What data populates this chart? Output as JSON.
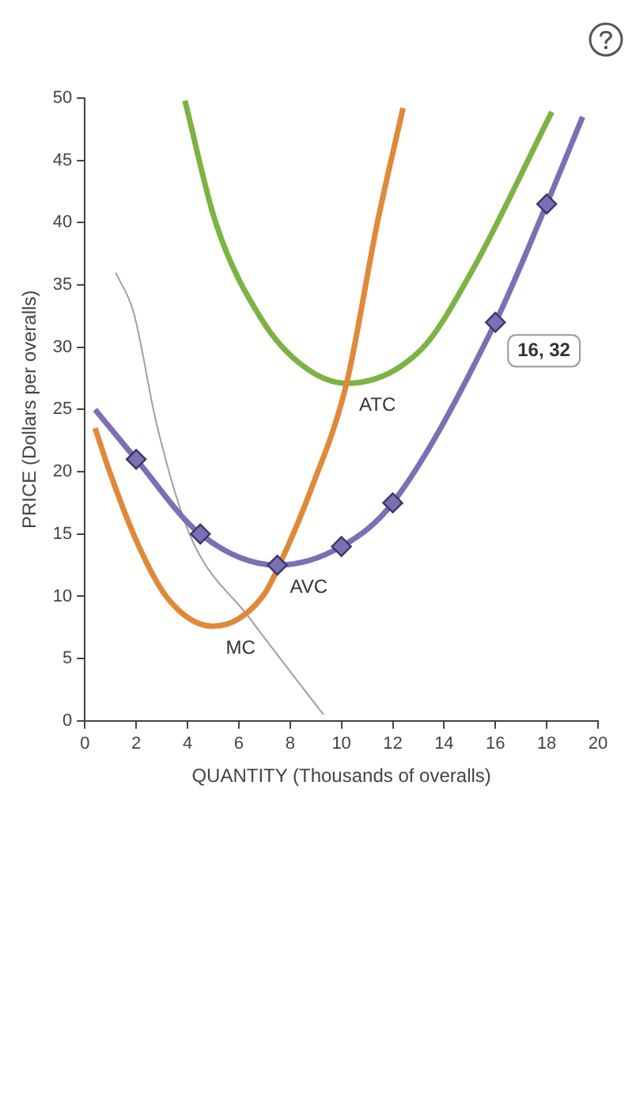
{
  "chart_data": {
    "type": "line",
    "xlabel": "QUANTITY (Thousands of overalls)",
    "ylabel": "PRICE (Dollars per overalls)",
    "xlim": [
      0,
      20
    ],
    "xticks": [
      0,
      2,
      4,
      6,
      8,
      10,
      12,
      14,
      16,
      18,
      20
    ],
    "ylim": [
      0,
      50
    ],
    "yticks": [
      0,
      5,
      10,
      15,
      20,
      25,
      30,
      35,
      40,
      45,
      50
    ],
    "grid": false,
    "legend": false,
    "series": [
      {
        "name": "MC",
        "color": "#e0893a",
        "marker": "none",
        "x": [
          0.4,
          1,
          2,
          3,
          4,
          5,
          6,
          7,
          7.6,
          8.8,
          10.2,
          11.4,
          12.4
        ],
        "values": [
          23.5,
          19.8,
          14.5,
          10.5,
          8.3,
          7.6,
          8.2,
          10.2,
          12.6,
          18.5,
          27.1,
          40,
          49.2
        ]
      },
      {
        "name": "AVC",
        "color": "#7b6fb5",
        "marker": "none",
        "x": [
          0.4,
          2,
          4.5,
          7.5,
          10,
          12,
          16,
          18,
          19.4
        ],
        "values": [
          25,
          21,
          15,
          12.5,
          14,
          17.5,
          32,
          41.5,
          48.5
        ]
      },
      {
        "color": "#7b6fb5",
        "type": "scatter",
        "marker": "diamond",
        "x": [
          2,
          4.5,
          7.5,
          10,
          12,
          16,
          18
        ],
        "values": [
          21,
          15,
          12.5,
          14,
          17.5,
          32,
          41.5
        ]
      },
      {
        "name": "ATC",
        "color": "#7cb342",
        "marker": "none",
        "x": [
          3.9,
          5.1,
          6.9,
          8.5,
          10.2,
          13.1,
          15,
          18.2
        ],
        "values": [
          49.8,
          40,
          32.2,
          28.5,
          27.1,
          29.8,
          35.8,
          48.9
        ]
      },
      {
        "color": "#a0a0a0",
        "marker": "none",
        "x": [
          1.2,
          1.9,
          2.8,
          4.1,
          6.4,
          9.3
        ],
        "values": [
          36,
          32.8,
          23.8,
          14.9,
          8.3,
          0.5
        ]
      }
    ],
    "annotations": [
      {
        "text": "16, 32",
        "x": 16,
        "y": 32
      }
    ]
  }
}
